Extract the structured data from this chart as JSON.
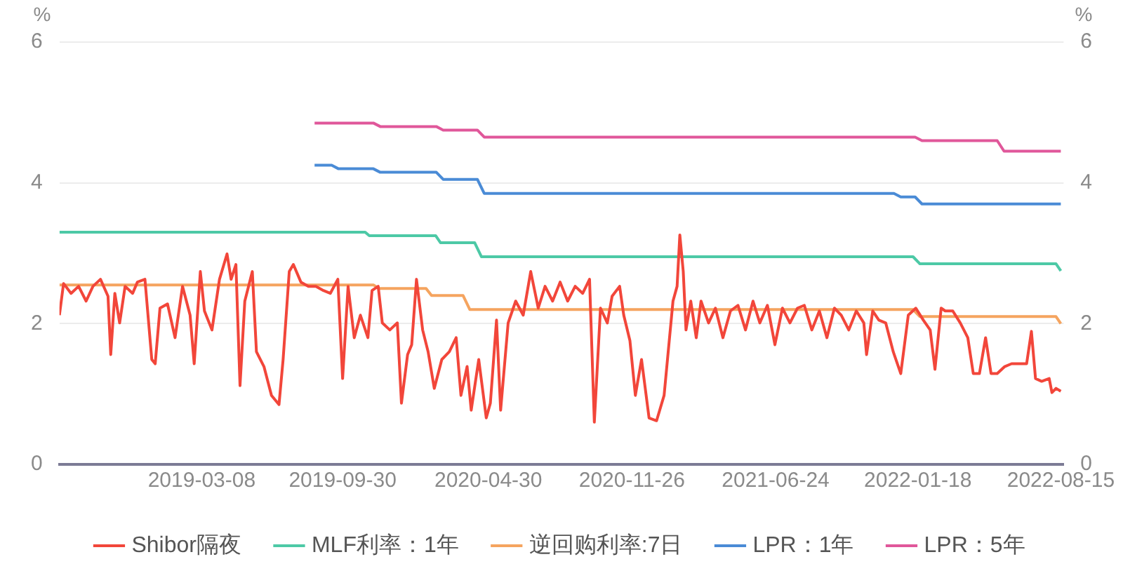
{
  "chart_data": {
    "type": "line",
    "ylabel": "%",
    "y2label": "%",
    "xlim": [
      "2018-08-12",
      "2022-08-19"
    ],
    "xticks": [
      "2019-03-08",
      "2019-09-30",
      "2020-04-30",
      "2020-11-26",
      "2021-06-24",
      "2022-01-18",
      "2022-08-15"
    ],
    "ylim": [
      0,
      6
    ],
    "yticks": [
      0,
      2,
      4,
      6
    ],
    "y2lim": [
      0,
      6
    ],
    "y2ticks": [
      0,
      2,
      4,
      6
    ],
    "grid": "y",
    "legend": "bottom",
    "marker": "none",
    "line_style": "solid",
    "series": [
      {
        "name": "Shibor隔夜",
        "color": "#f2463a",
        "x": [
          "2018-08-12",
          "2018-08-18",
          "2018-08-29",
          "2018-09-09",
          "2018-09-20",
          "2018-09-30",
          "2018-10-11",
          "2018-10-22",
          "2018-10-26",
          "2018-11-01",
          "2018-11-08",
          "2018-11-16",
          "2018-11-27",
          "2018-12-04",
          "2018-12-15",
          "2018-12-25",
          "2018-12-30",
          "2019-01-06",
          "2019-01-17",
          "2019-01-28",
          "2019-02-08",
          "2019-02-19",
          "2019-02-25",
          "2019-03-06",
          "2019-03-12",
          "2019-03-23",
          "2019-04-03",
          "2019-04-14",
          "2019-04-20",
          "2019-04-27",
          "2019-05-03",
          "2019-05-10",
          "2019-05-21",
          "2019-05-27",
          "2019-06-07",
          "2019-06-18",
          "2019-06-29",
          "2019-07-05",
          "2019-07-14",
          "2019-07-20",
          "2019-07-31",
          "2019-08-11",
          "2019-08-22",
          "2019-09-02",
          "2019-09-12",
          "2019-09-23",
          "2019-09-30",
          "2019-10-08",
          "2019-10-17",
          "2019-10-26",
          "2019-11-06",
          "2019-11-12",
          "2019-11-21",
          "2019-11-27",
          "2019-12-08",
          "2019-12-19",
          "2019-12-25",
          "2020-01-03",
          "2020-01-09",
          "2020-01-16",
          "2020-01-25",
          "2020-02-02",
          "2020-02-11",
          "2020-02-22",
          "2020-03-04",
          "2020-03-14",
          "2020-03-21",
          "2020-03-30",
          "2020-04-05",
          "2020-04-16",
          "2020-04-27",
          "2020-05-03",
          "2020-05-12",
          "2020-05-18",
          "2020-05-29",
          "2020-06-09",
          "2020-06-20",
          "2020-07-01",
          "2020-07-12",
          "2020-07-22",
          "2020-08-02",
          "2020-08-13",
          "2020-08-24",
          "2020-09-04",
          "2020-09-15",
          "2020-09-25",
          "2020-10-02",
          "2020-10-11",
          "2020-10-21",
          "2020-10-28",
          "2020-11-08",
          "2020-11-14",
          "2020-11-23",
          "2020-12-01",
          "2020-12-10",
          "2020-12-21",
          "2021-01-01",
          "2021-01-12",
          "2021-01-18",
          "2021-01-25",
          "2021-01-31",
          "2021-02-04",
          "2021-02-09",
          "2021-02-13",
          "2021-02-20",
          "2021-02-28",
          "2021-03-07",
          "2021-03-18",
          "2021-03-28",
          "2021-04-08",
          "2021-04-19",
          "2021-04-30",
          "2021-05-11",
          "2021-05-22",
          "2021-06-01",
          "2021-06-12",
          "2021-06-23",
          "2021-07-04",
          "2021-07-15",
          "2021-07-26",
          "2021-08-05",
          "2021-08-16",
          "2021-08-27",
          "2021-09-07",
          "2021-09-18",
          "2021-09-28",
          "2021-10-09",
          "2021-10-20",
          "2021-10-31",
          "2021-11-04",
          "2021-11-13",
          "2021-11-22",
          "2021-12-02",
          "2021-12-13",
          "2021-12-24",
          "2022-01-04",
          "2022-01-15",
          "2022-01-26",
          "2022-02-05",
          "2022-02-12",
          "2022-02-21",
          "2022-02-27",
          "2022-03-10",
          "2022-03-21",
          "2022-04-01",
          "2022-04-09",
          "2022-04-18",
          "2022-04-27",
          "2022-05-05",
          "2022-05-14",
          "2022-05-25",
          "2022-06-04",
          "2022-06-15",
          "2022-06-26",
          "2022-07-03",
          "2022-07-09",
          "2022-07-18",
          "2022-07-29",
          "2022-08-02",
          "2022-08-08",
          "2022-08-15"
        ],
        "values": [
          2.12,
          2.57,
          2.43,
          2.53,
          2.32,
          2.53,
          2.63,
          2.39,
          1.56,
          2.43,
          2.01,
          2.53,
          2.43,
          2.59,
          2.63,
          1.49,
          1.43,
          2.22,
          2.28,
          1.8,
          2.53,
          2.12,
          1.43,
          2.74,
          2.18,
          1.91,
          2.63,
          2.99,
          2.63,
          2.84,
          1.12,
          2.32,
          2.74,
          1.6,
          1.39,
          0.98,
          0.85,
          1.49,
          2.74,
          2.84,
          2.59,
          2.53,
          2.53,
          2.47,
          2.43,
          2.63,
          1.22,
          2.53,
          1.8,
          2.12,
          1.8,
          2.47,
          2.53,
          2.01,
          1.91,
          2.01,
          0.87,
          1.56,
          1.7,
          2.63,
          1.91,
          1.6,
          1.08,
          1.49,
          1.6,
          1.8,
          0.98,
          1.39,
          0.77,
          1.49,
          0.66,
          0.87,
          2.05,
          0.77,
          2.01,
          2.32,
          2.12,
          2.74,
          2.22,
          2.53,
          2.32,
          2.59,
          2.32,
          2.53,
          2.43,
          2.63,
          0.6,
          2.22,
          2.01,
          2.39,
          2.53,
          2.12,
          1.76,
          0.98,
          1.49,
          0.66,
          0.62,
          0.98,
          1.6,
          2.32,
          2.53,
          3.26,
          2.74,
          1.91,
          2.32,
          1.8,
          2.32,
          2.01,
          2.22,
          1.8,
          2.18,
          2.26,
          1.91,
          2.32,
          2.01,
          2.26,
          1.7,
          2.22,
          2.01,
          2.22,
          2.26,
          1.91,
          2.18,
          1.8,
          2.22,
          2.12,
          1.91,
          2.18,
          2.01,
          1.56,
          2.18,
          2.05,
          2.01,
          1.6,
          1.29,
          2.12,
          2.22,
          2.05,
          1.91,
          1.35,
          2.22,
          2.18,
          2.18,
          2.01,
          1.8,
          1.29,
          1.29,
          1.8,
          1.29,
          1.29,
          1.39,
          1.43,
          1.43,
          1.43,
          1.89,
          1.22,
          1.18,
          1.22,
          1.02,
          1.08,
          1.04
        ]
      },
      {
        "name": "MLF利率：1年",
        "color": "#4dc9a6",
        "x": [
          "2018-08-12",
          "2019-11-02",
          "2019-11-08",
          "2020-02-13",
          "2020-02-20",
          "2020-04-10",
          "2020-04-20",
          "2022-01-11",
          "2022-01-21",
          "2022-08-08",
          "2022-08-15"
        ],
        "values": [
          3.3,
          3.3,
          3.25,
          3.25,
          3.15,
          3.15,
          2.95,
          2.95,
          2.85,
          2.85,
          2.75
        ]
      },
      {
        "name": "逆回购利率:7日",
        "color": "#f5a45f",
        "x": [
          "2018-08-12",
          "2019-11-14",
          "2019-11-22",
          "2020-01-30",
          "2020-02-07",
          "2020-03-24",
          "2020-04-03",
          "2022-01-11",
          "2022-01-21",
          "2022-08-08",
          "2022-08-15"
        ],
        "values": [
          2.55,
          2.55,
          2.5,
          2.5,
          2.4,
          2.4,
          2.2,
          2.2,
          2.1,
          2.1,
          2.0
        ]
      },
      {
        "name": "LPR：1年",
        "color": "#4a8bd6",
        "x": [
          "2019-08-20",
          "2019-09-14",
          "2019-09-24",
          "2019-11-14",
          "2019-11-24",
          "2020-02-14",
          "2020-02-24",
          "2020-04-14",
          "2020-04-24",
          "2021-12-14",
          "2021-12-24",
          "2022-01-14",
          "2022-01-24",
          "2022-08-15"
        ],
        "values": [
          4.25,
          4.25,
          4.2,
          4.2,
          4.15,
          4.15,
          4.05,
          4.05,
          3.85,
          3.85,
          3.8,
          3.8,
          3.7,
          3.7
        ]
      },
      {
        "name": "LPR：5年",
        "color": "#e0579a",
        "x": [
          "2019-08-20",
          "2019-11-14",
          "2019-11-24",
          "2020-02-14",
          "2020-02-24",
          "2020-04-14",
          "2020-04-24",
          "2022-01-14",
          "2022-01-24",
          "2022-05-14",
          "2022-05-24",
          "2022-08-15"
        ],
        "values": [
          4.85,
          4.85,
          4.8,
          4.8,
          4.75,
          4.75,
          4.65,
          4.65,
          4.6,
          4.6,
          4.45,
          4.45
        ]
      }
    ]
  }
}
